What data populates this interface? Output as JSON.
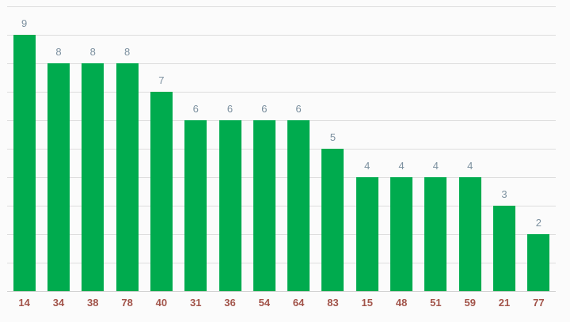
{
  "chart_data": {
    "type": "bar",
    "title": "",
    "xlabel": "",
    "ylabel": "",
    "categories": [
      "14",
      "34",
      "38",
      "78",
      "40",
      "31",
      "36",
      "54",
      "64",
      "83",
      "15",
      "48",
      "51",
      "59",
      "21",
      "77"
    ],
    "values": [
      9,
      8,
      8,
      8,
      7,
      6,
      6,
      6,
      6,
      5,
      4,
      4,
      4,
      4,
      3,
      2
    ],
    "ylim": [
      0,
      10
    ],
    "grid": true,
    "gridline_step": 1,
    "legend": "none",
    "colors": {
      "bar": "#00ab4e",
      "value_label": "#7d91a0",
      "category_label": "#a2544a",
      "gridline": "#dddddd",
      "baseline": "#d2d2d2",
      "background": "#fbfbfb"
    }
  }
}
